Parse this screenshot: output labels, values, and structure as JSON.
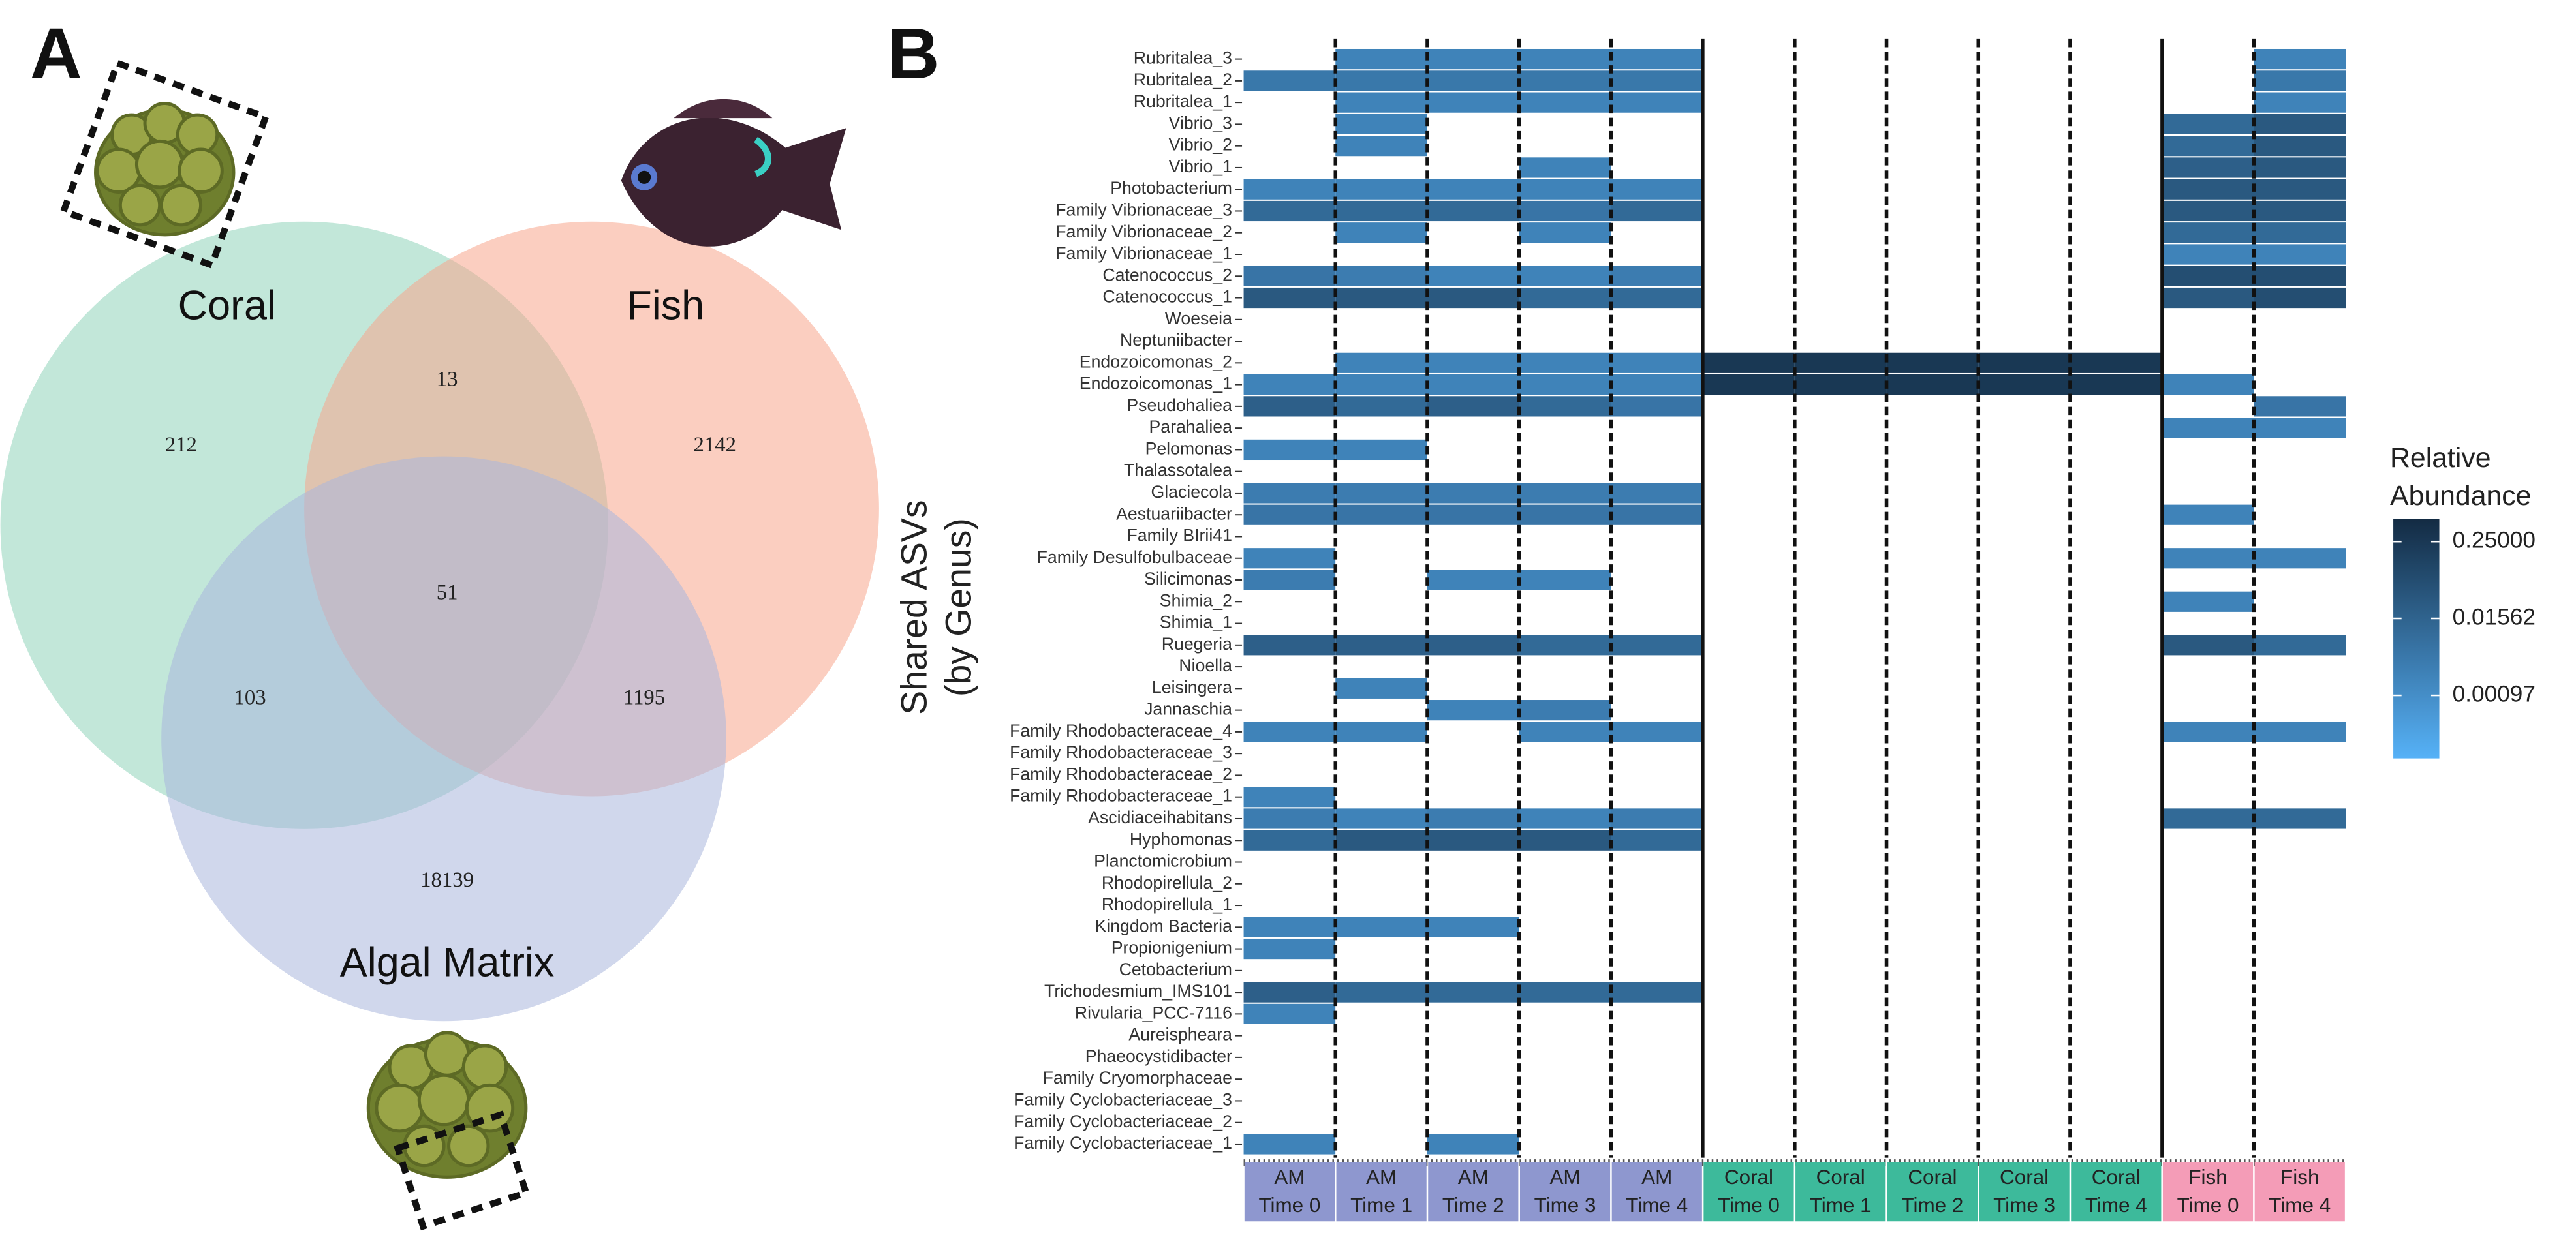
{
  "chart_data": [
    {
      "type": "venn",
      "panel": "A",
      "sets": [
        {
          "name": "Coral",
          "color": "#8fd4ba"
        },
        {
          "name": "Fish",
          "color": "#f7a68c"
        },
        {
          "name": "Algal Matrix",
          "color": "#a9b6dc"
        }
      ],
      "regions": [
        {
          "sets": [
            "Coral"
          ],
          "value": 212
        },
        {
          "sets": [
            "Coral",
            "Fish"
          ],
          "value": 13
        },
        {
          "sets": [
            "Fish"
          ],
          "value": 2142
        },
        {
          "sets": [
            "Coral",
            "Fish",
            "Algal Matrix"
          ],
          "value": 51
        },
        {
          "sets": [
            "Coral",
            "Algal Matrix"
          ],
          "value": 103
        },
        {
          "sets": [
            "Fish",
            "Algal Matrix"
          ],
          "value": 1195
        },
        {
          "sets": [
            "Algal Matrix"
          ],
          "value": 18139
        }
      ]
    },
    {
      "type": "heatmap",
      "panel": "B",
      "ylabel_lines": [
        "Shared ASVs",
        "(by Genus)"
      ],
      "legend_title_lines": [
        "Relative",
        "Abundance"
      ],
      "log_scale": true,
      "clim": [
        0.0001,
        0.57
      ],
      "colors": [
        "#56b1f7",
        "#132b43"
      ],
      "cticks": [
        {
          "value": 0.25,
          "label": "0.25000"
        },
        0.01562,
        0.00097
      ],
      "columns": [
        {
          "group": "AM",
          "time": "Time 0",
          "color": "#8e97cf"
        },
        {
          "group": "AM",
          "time": "Time 1",
          "color": "#8e97cf"
        },
        {
          "group": "AM",
          "time": "Time 2",
          "color": "#8e97cf"
        },
        {
          "group": "AM",
          "time": "Time 3",
          "color": "#8e97cf"
        },
        {
          "group": "AM",
          "time": "Time 4",
          "color": "#8e97cf"
        },
        {
          "group": "Coral",
          "time": "Time 0",
          "color": "#3dba9b"
        },
        {
          "group": "Coral",
          "time": "Time 1",
          "color": "#3dba9b"
        },
        {
          "group": "Coral",
          "time": "Time 2",
          "color": "#3dba9b"
        },
        {
          "group": "Coral",
          "time": "Time 3",
          "color": "#3dba9b"
        },
        {
          "group": "Coral",
          "time": "Time 4",
          "color": "#3dba9b"
        },
        {
          "group": "Fish",
          "time": "Time 0",
          "color": "#f49cb7"
        },
        {
          "group": "Fish",
          "time": "Time 4",
          "color": "#f49cb7"
        }
      ],
      "rows": [
        "Rubritalea_3",
        "Rubritalea_2",
        "Rubritalea_1",
        "Vibrio_3",
        "Vibrio_2",
        "Vibrio_1",
        "Photobacterium",
        "Family Vibrionaceae_3",
        "Family Vibrionaceae_2",
        "Family Vibrionaceae_1",
        "Catenococcus_2",
        "Catenococcus_1",
        "Woeseia",
        "Neptuniibacter",
        "Endozoicomonas_2",
        "Endozoicomonas_1",
        "Pseudohaliea",
        "Parahaliea",
        "Pelomonas",
        "Thalassotalea",
        "Glaciecola",
        "Aestuariibacter",
        "Family BIrii41",
        "Family Desulfobulbaceae",
        "Silicimonas",
        "Shimia_2",
        "Shimia_1",
        "Ruegeria",
        "Nioella",
        "Leisingera",
        "Jannaschia",
        "Family Rhodobacteraceae_4",
        "Family Rhodobacteraceae_3",
        "Family Rhodobacteraceae_2",
        "Family Rhodobacteraceae_1",
        "Ascidiaceihabitans",
        "Hyphomonas",
        "Planctomicrobium",
        "Rhodopirellula_2",
        "Rhodopirellula_1",
        "Kingdom Bacteria",
        "Propionigenium",
        "Cetobacterium",
        "Trichodesmium_IMS101",
        "Rivularia_PCC-7116",
        "Aureispheara",
        "Phaeocystidibacter",
        "Family Cryomorphaceae",
        "Family Cyclobacteriaceae_3",
        "Family Cyclobacteriaceae_2",
        "Family Cyclobacteriaceae_1"
      ],
      "values": [
        [
          0,
          0.002,
          0.002,
          0.002,
          0.002,
          0,
          0,
          0,
          0,
          0,
          0,
          0.002
        ],
        [
          0.004,
          0.004,
          0.004,
          0.004,
          0.004,
          0,
          0,
          0,
          0,
          0,
          0,
          0.004
        ],
        [
          0,
          0.002,
          0.002,
          0.002,
          0.002,
          0,
          0,
          0,
          0,
          0,
          0,
          0.002
        ],
        [
          0,
          0.002,
          0,
          0,
          0,
          0,
          0,
          0,
          0,
          0,
          0.01,
          0.03
        ],
        [
          0,
          0.002,
          0,
          0,
          0,
          0,
          0,
          0,
          0,
          0,
          0.01,
          0.03
        ],
        [
          0,
          0,
          0,
          0.002,
          0,
          0,
          0,
          0,
          0,
          0,
          0.02,
          0.03
        ],
        [
          0.002,
          0.002,
          0.002,
          0.002,
          0.002,
          0,
          0,
          0,
          0,
          0,
          0.03,
          0.03
        ],
        [
          0.01,
          0.01,
          0.01,
          0.005,
          0.01,
          0,
          0,
          0,
          0,
          0,
          0.03,
          0.03
        ],
        [
          0,
          0.002,
          0,
          0.002,
          0,
          0,
          0,
          0,
          0,
          0,
          0.01,
          0.01
        ],
        [
          0,
          0,
          0,
          0,
          0,
          0,
          0,
          0,
          0,
          0,
          0.002,
          0.002
        ],
        [
          0.005,
          0.003,
          0.002,
          0.002,
          0.003,
          0,
          0,
          0,
          0,
          0,
          0.06,
          0.06
        ],
        [
          0.03,
          0.03,
          0.03,
          0.01,
          0.01,
          0,
          0,
          0,
          0,
          0,
          0.03,
          0.06
        ],
        [
          0,
          0,
          0,
          0,
          0,
          0,
          0,
          0,
          0,
          0,
          0,
          0
        ],
        [
          0,
          0,
          0,
          0,
          0,
          0,
          0,
          0,
          0,
          0,
          0,
          0
        ],
        [
          0,
          0.002,
          0.002,
          0.002,
          0.002,
          0.25,
          0.25,
          0.25,
          0.25,
          0.25,
          0,
          0
        ],
        [
          0.002,
          0.002,
          0.002,
          0.002,
          0.002,
          0.25,
          0.25,
          0.25,
          0.25,
          0.25,
          0.002,
          0
        ],
        [
          0.02,
          0.01,
          0.02,
          0.01,
          0.005,
          0,
          0,
          0,
          0,
          0,
          0,
          0.005
        ],
        [
          0,
          0,
          0,
          0,
          0,
          0,
          0,
          0,
          0,
          0,
          0.002,
          0.002
        ],
        [
          0.002,
          0.002,
          0,
          0,
          0,
          0,
          0,
          0,
          0,
          0,
          0,
          0
        ],
        [
          0,
          0,
          0,
          0,
          0,
          0,
          0,
          0,
          0,
          0,
          0,
          0
        ],
        [
          0.003,
          0.003,
          0.003,
          0.003,
          0.003,
          0,
          0,
          0,
          0,
          0,
          0,
          0
        ],
        [
          0.005,
          0.005,
          0.005,
          0.005,
          0.005,
          0,
          0,
          0,
          0,
          0,
          0.002,
          0
        ],
        [
          0,
          0,
          0,
          0,
          0,
          0,
          0,
          0,
          0,
          0,
          0,
          0
        ],
        [
          0.002,
          0,
          0,
          0,
          0,
          0,
          0,
          0,
          0,
          0,
          0.002,
          0.002
        ],
        [
          0.003,
          0,
          0.002,
          0.002,
          0,
          0,
          0,
          0,
          0,
          0,
          0,
          0
        ],
        [
          0,
          0,
          0,
          0,
          0,
          0,
          0,
          0,
          0,
          0,
          0.002,
          0
        ],
        [
          0,
          0,
          0,
          0,
          0,
          0,
          0,
          0,
          0,
          0,
          0,
          0
        ],
        [
          0.02,
          0.02,
          0.02,
          0.01,
          0.01,
          0,
          0,
          0,
          0,
          0,
          0.03,
          0.01
        ],
        [
          0,
          0,
          0,
          0,
          0,
          0,
          0,
          0,
          0,
          0,
          0,
          0
        ],
        [
          0,
          0.002,
          0,
          0,
          0,
          0,
          0,
          0,
          0,
          0,
          0,
          0
        ],
        [
          0,
          0,
          0.002,
          0.003,
          0,
          0,
          0,
          0,
          0,
          0,
          0,
          0
        ],
        [
          0.002,
          0.002,
          0,
          0.002,
          0.002,
          0,
          0,
          0,
          0,
          0,
          0.002,
          0.002
        ],
        [
          0,
          0,
          0,
          0,
          0,
          0,
          0,
          0,
          0,
          0,
          0,
          0
        ],
        [
          0,
          0,
          0,
          0,
          0,
          0,
          0,
          0,
          0,
          0,
          0,
          0
        ],
        [
          0.002,
          0,
          0,
          0,
          0,
          0,
          0,
          0,
          0,
          0,
          0,
          0
        ],
        [
          0.003,
          0.002,
          0.003,
          0.002,
          0.003,
          0,
          0,
          0,
          0,
          0,
          0.01,
          0.01
        ],
        [
          0.01,
          0.03,
          0.03,
          0.03,
          0.01,
          0,
          0,
          0,
          0,
          0,
          0,
          0
        ],
        [
          0,
          0,
          0,
          0,
          0,
          0,
          0,
          0,
          0,
          0,
          0,
          0
        ],
        [
          0,
          0,
          0,
          0,
          0,
          0,
          0,
          0,
          0,
          0,
          0,
          0
        ],
        [
          0,
          0,
          0,
          0,
          0,
          0,
          0,
          0,
          0,
          0,
          0,
          0
        ],
        [
          0.002,
          0.002,
          0.002,
          0,
          0,
          0,
          0,
          0,
          0,
          0,
          0,
          0
        ],
        [
          0.002,
          0,
          0,
          0,
          0,
          0,
          0,
          0,
          0,
          0,
          0,
          0
        ],
        [
          0,
          0,
          0,
          0,
          0,
          0,
          0,
          0,
          0,
          0,
          0,
          0
        ],
        [
          0.02,
          0.01,
          0.01,
          0.01,
          0.01,
          0,
          0,
          0,
          0,
          0,
          0,
          0
        ],
        [
          0.002,
          0,
          0,
          0,
          0,
          0,
          0,
          0,
          0,
          0,
          0,
          0
        ],
        [
          0,
          0,
          0,
          0,
          0,
          0,
          0,
          0,
          0,
          0,
          0,
          0
        ],
        [
          0,
          0,
          0,
          0,
          0,
          0,
          0,
          0,
          0,
          0,
          0,
          0
        ],
        [
          0,
          0,
          0,
          0,
          0,
          0,
          0,
          0,
          0,
          0,
          0,
          0
        ],
        [
          0,
          0,
          0,
          0,
          0,
          0,
          0,
          0,
          0,
          0,
          0,
          0
        ],
        [
          0,
          0,
          0,
          0,
          0,
          0,
          0,
          0,
          0,
          0,
          0,
          0
        ],
        [
          0.002,
          0,
          0.002,
          0,
          0,
          0,
          0,
          0,
          0,
          0,
          0,
          0
        ]
      ]
    }
  ]
}
